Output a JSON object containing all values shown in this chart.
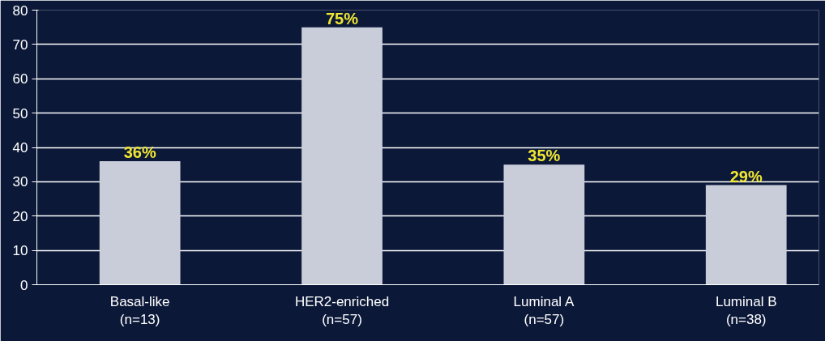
{
  "chart_data": {
    "type": "bar",
    "categories": [
      "Basal-like\n(n=13)",
      "HER2-enriched\n(n=57)",
      "Luminal A\n(n=57)",
      "Luminal B\n(n=38)"
    ],
    "values": [
      36,
      75,
      35,
      29
    ],
    "value_labels": [
      "36%",
      "75%",
      "35%",
      "29%"
    ],
    "color": "#c9cdd9",
    "ylim": [
      0,
      80
    ],
    "yticks": [
      0,
      10,
      20,
      30,
      40,
      50,
      60,
      70,
      80
    ],
    "grid": "y"
  }
}
